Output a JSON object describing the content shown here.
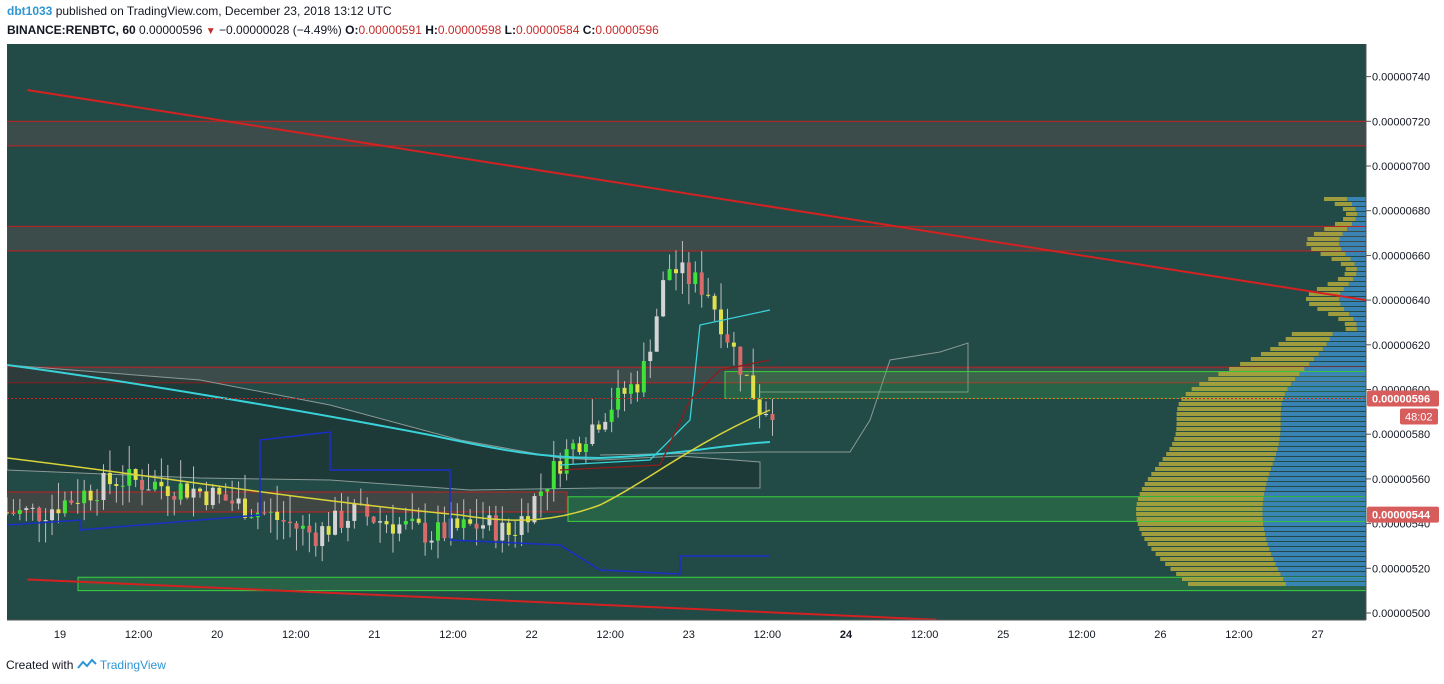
{
  "header": {
    "author": "dbt1033",
    "published_text": "published on TradingView.com, December 23, 2018 13:12 UTC",
    "symbol": "BINANCE:RENBTC, 60",
    "last": "0.00000596",
    "change": "−0.00000028 (−4.49%)",
    "open_label": "O:",
    "open": "0.00000591",
    "high_label": "H:",
    "high": "0.00000598",
    "low_label": "L:",
    "low": "0.00000584",
    "close_label": "C:",
    "close": "0.00000596"
  },
  "footer": {
    "created_with": "Created with",
    "brand": "TradingView"
  },
  "colors": {
    "chart_bg": "#224a47",
    "resistance_line": "#d42121",
    "ema_cyan": "#39d2d8",
    "ema_yellow": "#d9d33a",
    "donchian_blue": "#1a2fc7",
    "price_badge": "#d75d5d"
  },
  "chart_data": {
    "type": "candlestick",
    "ylim": [
      5e-06,
      7.505e-06
    ],
    "y_ticks": [
      "0.00000500",
      "0.00000520",
      "0.00000540",
      "0.00000560",
      "0.00000580",
      "0.00000600",
      "0.00000620",
      "0.00000640",
      "0.00000660",
      "0.00000680",
      "0.00000700",
      "0.00000720",
      "0.00000740"
    ],
    "x_ticks": [
      "19",
      "12:00",
      "20",
      "12:00",
      "21",
      "12:00",
      "22",
      "12:00",
      "23",
      "12:00",
      "24",
      "12:00",
      "25",
      "12:00",
      "26",
      "12:00",
      "27"
    ],
    "x_tick_bold": [
      false,
      false,
      false,
      false,
      false,
      false,
      false,
      false,
      false,
      false,
      true,
      false,
      false,
      false,
      false,
      false,
      false
    ],
    "current_price": {
      "label": "0.00000596",
      "value": 5.96e-06,
      "timer": "48:02"
    },
    "highlight_price": {
      "label": "0.00000544",
      "value": 5.44e-06
    },
    "resistance_zones": [
      {
        "top": 7.2e-06,
        "bottom": 7.09e-06
      },
      {
        "top": 6.73e-06,
        "bottom": 6.62e-06
      },
      {
        "top": 6.1e-06,
        "bottom": 6.03e-06
      }
    ],
    "demand_zones": [
      {
        "top": 6.08e-06,
        "bottom": 5.96e-06
      },
      {
        "top": 5.52e-06,
        "bottom": 5.41e-06
      },
      {
        "top": 5.16e-06,
        "bottom": 5.1e-06
      }
    ],
    "trendlines": [
      {
        "from": [
          "18 19:00",
          7.34e-06
        ],
        "to": [
          "27 12:00",
          6.38e-06
        ]
      },
      {
        "from": [
          "18 19:00",
          5.15e-06
        ],
        "to": [
          "24 14:00",
          4.97e-06
        ]
      }
    ],
    "candle_summary": {
      "count": 120,
      "period_high": 6.85e-06,
      "period_low": 5.11e-06
    },
    "volume_profile": "visible range, right side"
  }
}
